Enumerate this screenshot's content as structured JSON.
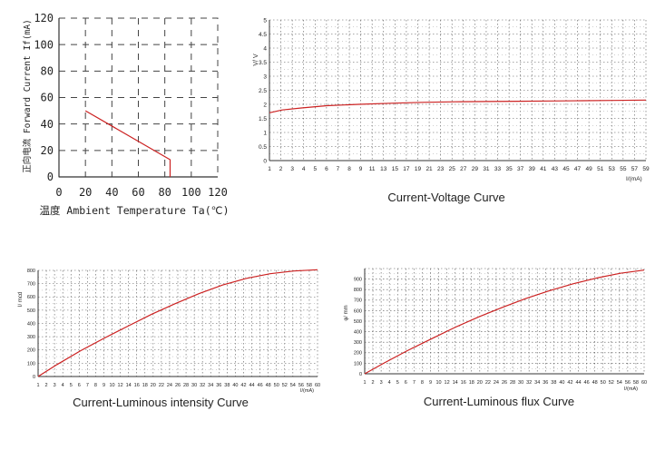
{
  "chart_data": [
    {
      "type": "line",
      "ylabel": "正向电流 Forward Current If(mA)",
      "xlabel": "温度 Ambient Temperature Ta(℃)",
      "xlim": [
        0,
        120
      ],
      "ylim": [
        0,
        120
      ],
      "x_ticks": [
        "0",
        "20",
        "40",
        "60",
        "80",
        "100",
        "120"
      ],
      "y_ticks": [
        "0",
        "20",
        "40",
        "60",
        "80",
        "100",
        "120"
      ],
      "grid": true,
      "series": [
        {
          "x": [
            20,
            84,
            84
          ],
          "y": [
            50,
            13,
            0
          ],
          "color": "#cc2222"
        }
      ]
    },
    {
      "type": "line",
      "title": "Current-Voltage Curve",
      "ylabel": "V/ V",
      "xlabel": "I/(mA)",
      "xlim": [
        1,
        60
      ],
      "ylim": [
        0,
        5
      ],
      "x_ticks": [
        "1",
        "2",
        "3",
        "4",
        "5",
        "6",
        "7",
        "8",
        "9",
        "11",
        "13",
        "15",
        "17",
        "19",
        "21",
        "23",
        "25",
        "27",
        "29",
        "31",
        "33",
        "35",
        "37",
        "39",
        "41",
        "43",
        "45",
        "47",
        "49",
        "51",
        "53",
        "55",
        "57",
        "59"
      ],
      "y_ticks": [
        "0",
        "0.5",
        "1",
        "1.5",
        "2",
        "2.5",
        "3",
        "3.5",
        "4",
        "4.5",
        "5"
      ],
      "grid": true,
      "series": [
        {
          "x": [
            1,
            3,
            6,
            10,
            15,
            20,
            25,
            30,
            35,
            40,
            45,
            50,
            55,
            60
          ],
          "y": [
            1.7,
            1.8,
            1.87,
            1.95,
            2.0,
            2.04,
            2.07,
            2.09,
            2.1,
            2.11,
            2.12,
            2.13,
            2.14,
            2.15
          ],
          "color": "#cc2222"
        }
      ]
    },
    {
      "type": "line",
      "title": "Current-Luminous intensity Curve",
      "ylabel": "I/ mcd",
      "xlabel": "I/(mA)",
      "xlim": [
        1,
        60
      ],
      "ylim": [
        0,
        800
      ],
      "x_ticks": [
        "1",
        "2",
        "3",
        "4",
        "5",
        "6",
        "7",
        "8",
        "9",
        "10",
        "12",
        "14",
        "16",
        "18",
        "20",
        "22",
        "24",
        "26",
        "28",
        "30",
        "32",
        "34",
        "36",
        "38",
        "40",
        "42",
        "44",
        "46",
        "48",
        "50",
        "52",
        "54",
        "56",
        "58",
        "60"
      ],
      "y_ticks": [
        "0",
        "100",
        "200",
        "300",
        "400",
        "500",
        "600",
        "700",
        "800"
      ],
      "grid": true,
      "series": [
        {
          "x": [
            1,
            5,
            10,
            15,
            20,
            25,
            30,
            35,
            40,
            45,
            50,
            55,
            60
          ],
          "y": [
            0,
            90,
            195,
            290,
            380,
            470,
            550,
            625,
            690,
            740,
            775,
            795,
            805
          ],
          "color": "#cc2222"
        }
      ]
    },
    {
      "type": "line",
      "title": "Current-Luminous flux Curve",
      "ylabel": "φ/ mm",
      "xlabel": "I/(mA)",
      "xlim": [
        1,
        60
      ],
      "ylim": [
        0,
        1000
      ],
      "x_ticks": [
        "1",
        "2",
        "3",
        "4",
        "5",
        "6",
        "7",
        "8",
        "9",
        "10",
        "12",
        "14",
        "16",
        "18",
        "20",
        "22",
        "24",
        "26",
        "28",
        "30",
        "32",
        "34",
        "36",
        "38",
        "40",
        "42",
        "44",
        "46",
        "48",
        "50",
        "52",
        "54",
        "56",
        "58",
        "60"
      ],
      "y_ticks": [
        "0",
        "100",
        "200",
        "300",
        "400",
        "500",
        "600",
        "700",
        "800",
        "900"
      ],
      "grid": true,
      "series": [
        {
          "x": [
            1,
            5,
            10,
            15,
            20,
            25,
            30,
            35,
            40,
            45,
            50,
            55,
            60
          ],
          "y": [
            0,
            100,
            220,
            330,
            440,
            540,
            630,
            715,
            790,
            855,
            910,
            955,
            985
          ],
          "color": "#cc2222"
        }
      ]
    }
  ]
}
